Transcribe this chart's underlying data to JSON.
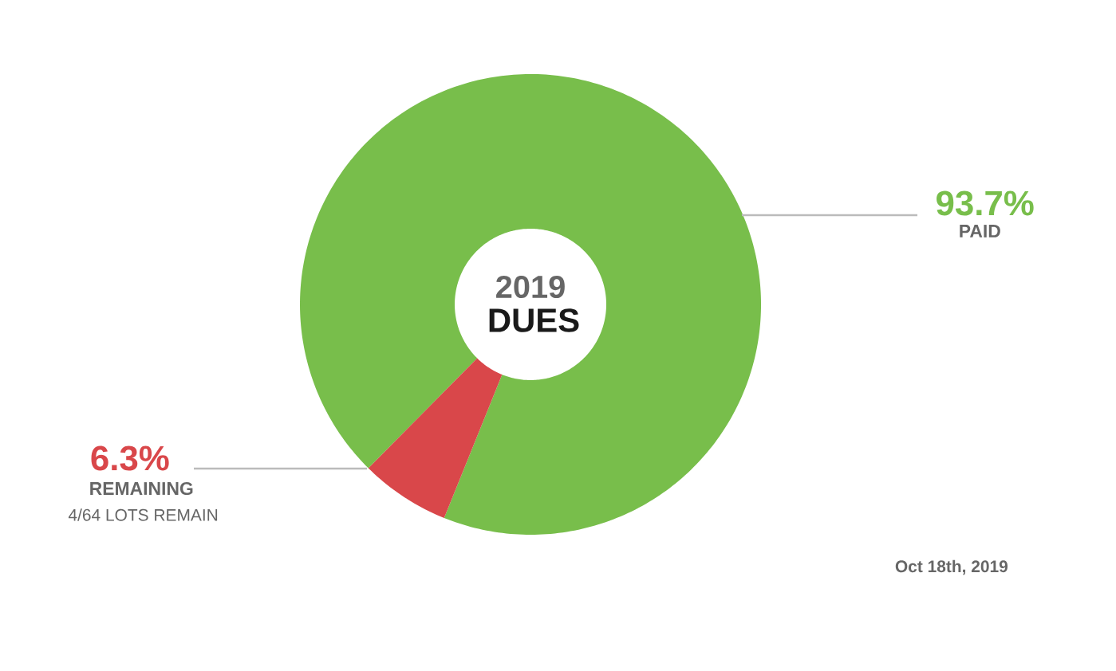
{
  "chart_data": {
    "type": "donut",
    "title": "2019",
    "subtitle": "DUES",
    "categories": [
      "PAID",
      "REMAINING"
    ],
    "values": [
      93.7,
      6.3
    ],
    "colors": [
      "#78be4b",
      "#d9474a"
    ],
    "value_labels": [
      "93.7%",
      "6.3%"
    ],
    "annotations": [
      "4/64 LOTS REMAIN",
      "Oct 18th, 2019"
    ]
  }
}
